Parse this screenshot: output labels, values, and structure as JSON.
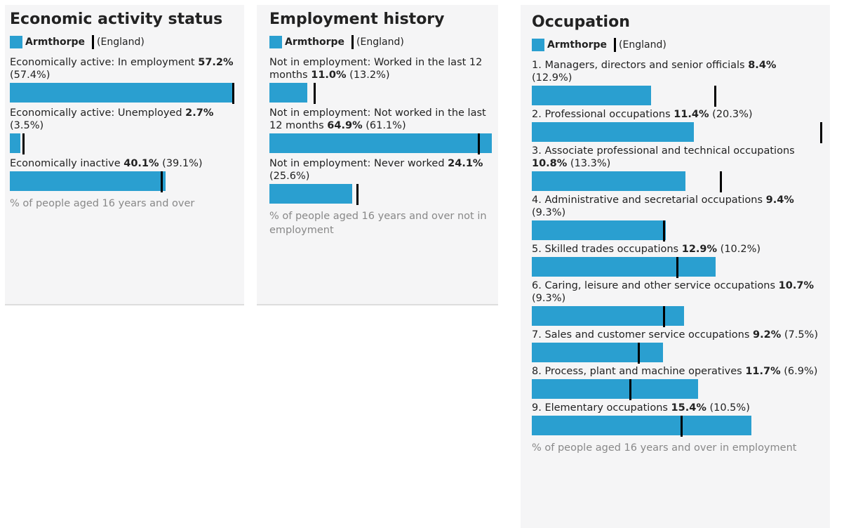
{
  "chart_data": [
    {
      "type": "bar",
      "title": "Economic activity status",
      "categories": [
        "Economically active: In employment",
        "Economically active: Unemployed",
        "Economically inactive"
      ],
      "series": [
        {
          "name": "Armthorpe",
          "color": "#2a9fd0",
          "values": [
            57.2,
            2.7,
            40.1
          ],
          "value_labels": [
            "57.2%",
            "2.7%",
            "40.1%"
          ]
        },
        {
          "name": "(England)",
          "color": "#000000",
          "values": [
            57.4,
            3.5,
            39.1
          ],
          "value_labels": [
            "(57.4%)",
            "(3.5%)",
            "(39.1%)"
          ]
        }
      ],
      "xlabel": "% of people aged 16 years and over"
    },
    {
      "type": "bar",
      "title": "Employment history",
      "categories": [
        "Not in employment: Worked in the last 12 months",
        "Not in employment: Not worked in the last 12 months",
        "Not in employment: Never worked"
      ],
      "series": [
        {
          "name": "Armthorpe",
          "color": "#2a9fd0",
          "values": [
            11.0,
            64.9,
            24.1
          ],
          "value_labels": [
            "11.0%",
            "64.9%",
            "24.1%"
          ]
        },
        {
          "name": "(England)",
          "color": "#000000",
          "values": [
            13.2,
            61.1,
            25.6
          ],
          "value_labels": [
            "(13.2%)",
            "(61.1%)",
            "(25.6%)"
          ]
        }
      ],
      "xlabel": "% of people aged 16 years and over not in employment"
    },
    {
      "type": "bar",
      "title": "Occupation",
      "categories": [
        "1. Managers, directors and senior officials",
        "2. Professional occupations",
        "3. Associate professional and technical occupations",
        "4. Administrative and secretarial occupations",
        "5. Skilled trades occupations",
        "6. Caring, leisure and other service occupations",
        "7. Sales and customer service occupations",
        "8. Process, plant and machine operatives",
        "9. Elementary occupations"
      ],
      "series": [
        {
          "name": "Armthorpe",
          "color": "#2a9fd0",
          "values": [
            8.4,
            11.4,
            10.8,
            9.4,
            12.9,
            10.7,
            9.2,
            11.7,
            15.4
          ],
          "value_labels": [
            "8.4%",
            "11.4%",
            "10.8%",
            "9.4%",
            "12.9%",
            "10.7%",
            "9.2%",
            "11.7%",
            "15.4%"
          ]
        },
        {
          "name": "(England)",
          "color": "#000000",
          "values": [
            12.9,
            20.3,
            13.3,
            9.3,
            10.2,
            9.3,
            7.5,
            6.9,
            10.5
          ],
          "value_labels": [
            "(12.9%)",
            "(20.3%)",
            "(13.3%)",
            "(9.3%)",
            "(10.2%)",
            "(9.3%)",
            "(7.5%)",
            "(6.9%)",
            "(10.5%)"
          ]
        }
      ],
      "xlabel": "% of people aged 16 years and over in employment"
    }
  ]
}
